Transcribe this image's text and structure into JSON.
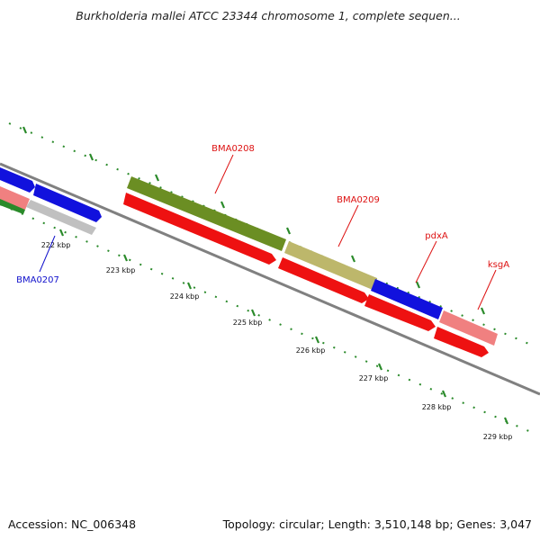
{
  "title": "Burkholderia mallei ATCC 23344 chromosome 1, complete sequen...",
  "footer": {
    "accession": "Accession: NC_006348",
    "topology": "Topology: circular; Length: 3,510,148 bp; Genes: 3,047"
  },
  "colors": {
    "backbone": "#808080",
    "tick": "#2a8a2a",
    "red_gene": "#ee1111",
    "blue_gene": "#1111dd",
    "olive_gene": "#6b8e23",
    "khaki_gene": "#bdb76b",
    "pink_gene": "#f08080",
    "gray_gene": "#c0c0c0",
    "red_label": "#dd1111",
    "blue_label": "#1111cc"
  },
  "scale_labels": [
    "222 kbp",
    "223 kbp",
    "224 kbp",
    "225 kbp",
    "226 kbp",
    "227 kbp",
    "228 kbp",
    "229 kbp"
  ],
  "gene_labels": [
    {
      "name": "BMA0208",
      "color": "red"
    },
    {
      "name": "BMA0209",
      "color": "red"
    },
    {
      "name": "pdxA",
      "color": "red"
    },
    {
      "name": "ksgA",
      "color": "red"
    },
    {
      "name": "BMA0207",
      "color": "blue"
    }
  ]
}
